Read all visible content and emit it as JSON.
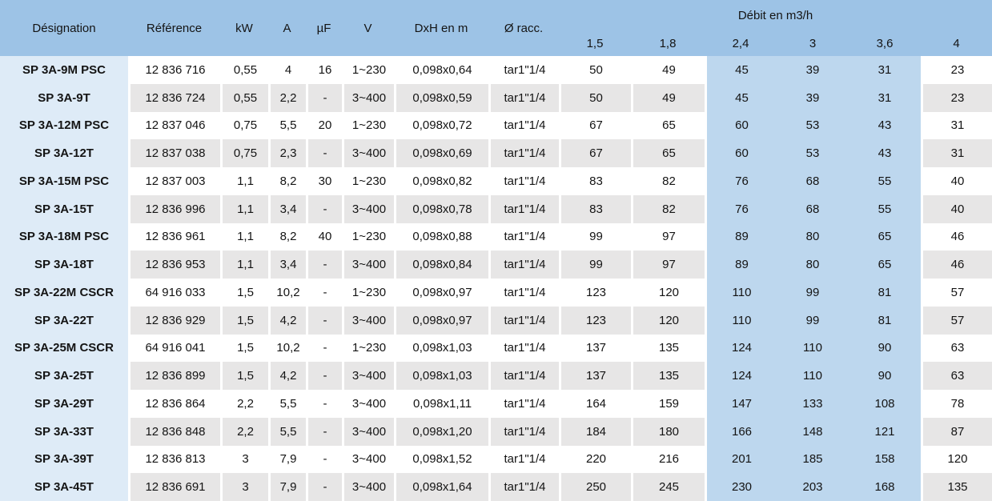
{
  "colors": {
    "header_bg": "#9DC3E6",
    "band_bg": "#BDD7EE",
    "designation_col_bg": "#DEEBF7",
    "stripe_grey": "#E7E6E6",
    "stripe_white": "#FFFFFF",
    "text": "#141414"
  },
  "table": {
    "headers": {
      "designation": "Désignation",
      "reference": "Référence",
      "kw": "kW",
      "a": "A",
      "uf": "µF",
      "v": "V",
      "dxh": "DxH en m",
      "racc": "Ø racc.",
      "debit_group": "Débit en m3/h",
      "debit_cols": [
        "1,5",
        "1,8",
        "2,4",
        "3",
        "3,6",
        "4"
      ]
    },
    "rows": [
      {
        "designation": "SP 3A-9M PSC",
        "reference": "12 836 716",
        "kw": "0,55",
        "a": "4",
        "uf": "16",
        "v": "1~230",
        "dxh": "0,098x0,64",
        "racc": "tar1\"1/4",
        "debits": [
          "50",
          "49",
          "45",
          "39",
          "31",
          "23"
        ]
      },
      {
        "designation": "SP 3A-9T",
        "reference": "12 836 724",
        "kw": "0,55",
        "a": "2,2",
        "uf": "-",
        "v": "3~400",
        "dxh": "0,098x0,59",
        "racc": "tar1\"1/4",
        "debits": [
          "50",
          "49",
          "45",
          "39",
          "31",
          "23"
        ]
      },
      {
        "designation": "SP 3A-12M PSC",
        "reference": "12 837 046",
        "kw": "0,75",
        "a": "5,5",
        "uf": "20",
        "v": "1~230",
        "dxh": "0,098x0,72",
        "racc": "tar1\"1/4",
        "debits": [
          "67",
          "65",
          "60",
          "53",
          "43",
          "31"
        ]
      },
      {
        "designation": "SP 3A-12T",
        "reference": "12 837 038",
        "kw": "0,75",
        "a": "2,3",
        "uf": "-",
        "v": "3~400",
        "dxh": "0,098x0,69",
        "racc": "tar1\"1/4",
        "debits": [
          "67",
          "65",
          "60",
          "53",
          "43",
          "31"
        ]
      },
      {
        "designation": "SP 3A-15M PSC",
        "reference": "12 837 003",
        "kw": "1,1",
        "a": "8,2",
        "uf": "30",
        "v": "1~230",
        "dxh": "0,098x0,82",
        "racc": "tar1\"1/4",
        "debits": [
          "83",
          "82",
          "76",
          "68",
          "55",
          "40"
        ]
      },
      {
        "designation": "SP 3A-15T",
        "reference": "12 836 996",
        "kw": "1,1",
        "a": "3,4",
        "uf": "-",
        "v": "3~400",
        "dxh": "0,098x0,78",
        "racc": "tar1\"1/4",
        "debits": [
          "83",
          "82",
          "76",
          "68",
          "55",
          "40"
        ]
      },
      {
        "designation": "SP 3A-18M PSC",
        "reference": "12 836 961",
        "kw": "1,1",
        "a": "8,2",
        "uf": "40",
        "v": "1~230",
        "dxh": "0,098x0,88",
        "racc": "tar1\"1/4",
        "debits": [
          "99",
          "97",
          "89",
          "80",
          "65",
          "46"
        ]
      },
      {
        "designation": "SP 3A-18T",
        "reference": "12 836 953",
        "kw": "1,1",
        "a": "3,4",
        "uf": "-",
        "v": "3~400",
        "dxh": "0,098x0,84",
        "racc": "tar1\"1/4",
        "debits": [
          "99",
          "97",
          "89",
          "80",
          "65",
          "46"
        ]
      },
      {
        "designation": "SP 3A-22M CSCR",
        "reference": "64 916 033",
        "kw": "1,5",
        "a": "10,2",
        "uf": "-",
        "v": "1~230",
        "dxh": "0,098x0,97",
        "racc": "tar1\"1/4",
        "debits": [
          "123",
          "120",
          "110",
          "99",
          "81",
          "57"
        ]
      },
      {
        "designation": "SP 3A-22T",
        "reference": "12 836 929",
        "kw": "1,5",
        "a": "4,2",
        "uf": "-",
        "v": "3~400",
        "dxh": "0,098x0,97",
        "racc": "tar1\"1/4",
        "debits": [
          "123",
          "120",
          "110",
          "99",
          "81",
          "57"
        ]
      },
      {
        "designation": "SP 3A-25M CSCR",
        "reference": "64 916 041",
        "kw": "1,5",
        "a": "10,2",
        "uf": "-",
        "v": "1~230",
        "dxh": "0,098x1,03",
        "racc": "tar1\"1/4",
        "debits": [
          "137",
          "135",
          "124",
          "110",
          "90",
          "63"
        ]
      },
      {
        "designation": "SP 3A-25T",
        "reference": "12 836 899",
        "kw": "1,5",
        "a": "4,2",
        "uf": "-",
        "v": "3~400",
        "dxh": "0,098x1,03",
        "racc": "tar1\"1/4",
        "debits": [
          "137",
          "135",
          "124",
          "110",
          "90",
          "63"
        ]
      },
      {
        "designation": "SP 3A-29T",
        "reference": "12 836 864",
        "kw": "2,2",
        "a": "5,5",
        "uf": "-",
        "v": "3~400",
        "dxh": "0,098x1,11",
        "racc": "tar1\"1/4",
        "debits": [
          "164",
          "159",
          "147",
          "133",
          "108",
          "78"
        ]
      },
      {
        "designation": "SP 3A-33T",
        "reference": "12 836 848",
        "kw": "2,2",
        "a": "5,5",
        "uf": "-",
        "v": "3~400",
        "dxh": "0,098x1,20",
        "racc": "tar1\"1/4",
        "debits": [
          "184",
          "180",
          "166",
          "148",
          "121",
          "87"
        ]
      },
      {
        "designation": "SP 3A-39T",
        "reference": "12 836 813",
        "kw": "3",
        "a": "7,9",
        "uf": "-",
        "v": "3~400",
        "dxh": "0,098x1,52",
        "racc": "tar1\"1/4",
        "debits": [
          "220",
          "216",
          "201",
          "185",
          "158",
          "120"
        ]
      },
      {
        "designation": "SP 3A-45T",
        "reference": "12 836 691",
        "kw": "3",
        "a": "7,9",
        "uf": "-",
        "v": "3~400",
        "dxh": "0,098x1,64",
        "racc": "tar1\"1/4",
        "debits": [
          "250",
          "245",
          "230",
          "203",
          "168",
          "135"
        ]
      }
    ]
  }
}
